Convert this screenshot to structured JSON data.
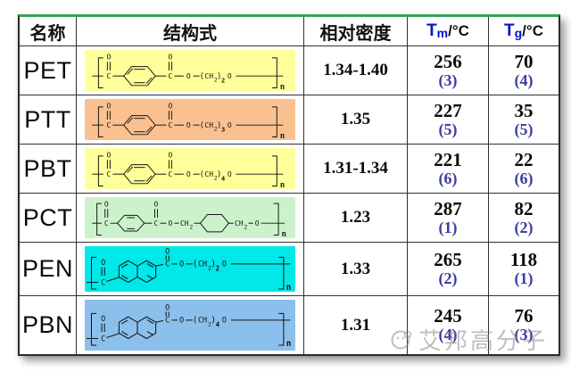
{
  "page": {
    "watermark_text": "艾邦高分子"
  },
  "colors": {
    "top_border_green": "#35a25c",
    "header_temp_blue": "#0014cf",
    "rank_blue": "#3c3c9f",
    "yellow_highlight": "#ffff99",
    "orange_highlight": "#fac090",
    "green_highlight": "#ccf2cc",
    "cyan_highlight": "#00e8e8",
    "blue_highlight": "#8cc0ec"
  },
  "tokens": {
    "oxygen": "O",
    "carbon": "C",
    "methylene": "CH",
    "two": "2",
    "open": "(",
    "close": ")",
    "repeat": "n"
  },
  "table": {
    "headers": {
      "name": "名称",
      "structure": "结构式",
      "density": "相对密度",
      "tm": {
        "symbol": "T",
        "sub": "m",
        "unit": "/°C"
      },
      "tg": {
        "symbol": "T",
        "sub": "g",
        "unit": "/°C"
      }
    },
    "rows": [
      {
        "name": "PET",
        "density": "1.34-1.40",
        "tm": "256",
        "tm_rank": "(3)",
        "tg": "70",
        "tg_rank": "(4)",
        "highlight": "#ffff99",
        "structure": {
          "type": "benzene",
          "sub": "2",
          "formula": "[-CO-C6H4-CO-O-(CH2)2-O-]n"
        }
      },
      {
        "name": "PTT",
        "density": "1.35",
        "tm": "227",
        "tm_rank": "(5)",
        "tg": "35",
        "tg_rank": "(5)",
        "highlight": "#fac090",
        "structure": {
          "type": "benzene",
          "sub": "3",
          "formula": "[-CO-C6H4-CO-O-(CH2)3-O-]n"
        }
      },
      {
        "name": "PBT",
        "density": "1.31-1.34",
        "tm": "221",
        "tm_rank": "(6)",
        "tg": "22",
        "tg_rank": "(6)",
        "highlight": "#ffff99",
        "structure": {
          "type": "benzene",
          "sub": "4",
          "formula": "[-CO-C6H4-CO-O-(CH2)4-O-]n"
        }
      },
      {
        "name": "PCT",
        "density": "1.23",
        "tm": "287",
        "tm_rank": "(1)",
        "tg": "82",
        "tg_rank": "(2)",
        "highlight": "#ccf2cc",
        "structure": {
          "type": "pct",
          "sub": "",
          "formula": "[-CO-C6H4-CO-O-CH2-C6H10-CH2-O-]n"
        }
      },
      {
        "name": "PEN",
        "density": "1.33",
        "tm": "265",
        "tm_rank": "(2)",
        "tg": "118",
        "tg_rank": "(1)",
        "highlight": "#00e8e8",
        "structure": {
          "type": "naphthalene",
          "sub": "2",
          "formula": "[-CO-C10H6-CO-O-(CH2)2-O-]n"
        }
      },
      {
        "name": "PBN",
        "density": "1.31",
        "tm": "245",
        "tm_rank": "(4)",
        "tg": "76",
        "tg_rank": "(3)",
        "highlight": "#8cc0ec",
        "structure": {
          "type": "naphthalene",
          "sub": "4",
          "formula": "[-CO-C10H6-CO-O-(CH2)4-O-]n"
        }
      }
    ]
  }
}
